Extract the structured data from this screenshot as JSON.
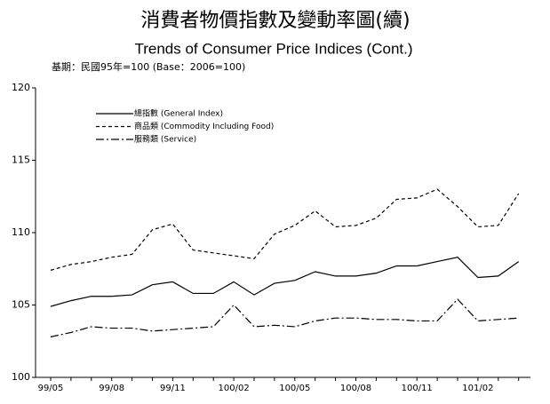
{
  "chart_data": {
    "type": "line",
    "title": "消費者物價指數及變動率圖(續)",
    "subtitle": "Trends of Consumer Price Indices (Cont.)",
    "note": "基期：民國95年=100 (Base：2006=100)",
    "categories": [
      "99/05",
      null,
      null,
      "99/08",
      null,
      null,
      "99/11",
      null,
      null,
      "100/02",
      null,
      null,
      "100/05",
      null,
      null,
      "100/08",
      null,
      null,
      "100/11",
      null,
      null,
      "101/02",
      null,
      null
    ],
    "series": [
      {
        "name": "總指數 (General Index)",
        "color": "#000000",
        "dash": "solid",
        "values": [
          104.9,
          105.3,
          105.6,
          105.6,
          105.7,
          106.4,
          106.6,
          105.8,
          105.8,
          106.6,
          105.7,
          106.5,
          106.7,
          107.3,
          107.0,
          107.0,
          107.2,
          107.7,
          107.7,
          108.0,
          108.3,
          106.9,
          107.0,
          108.0
        ]
      },
      {
        "name": "商品類 (Commodity Including Food)",
        "color": "#000000",
        "dash": "dashed",
        "values": [
          107.4,
          107.8,
          108.0,
          108.3,
          108.5,
          110.2,
          110.6,
          108.8,
          108.6,
          108.4,
          108.2,
          109.9,
          110.5,
          111.5,
          110.4,
          110.5,
          111.0,
          112.3,
          112.4,
          113.0,
          111.8,
          110.4,
          110.5,
          112.7
        ]
      },
      {
        "name": "服務類 (Service)",
        "color": "#000000",
        "dash": "dashdot",
        "values": [
          102.8,
          103.1,
          103.5,
          103.4,
          103.4,
          103.2,
          103.3,
          103.4,
          103.5,
          105.0,
          103.5,
          103.6,
          103.5,
          103.9,
          104.1,
          104.1,
          104.0,
          104.0,
          103.9,
          103.9,
          105.4,
          103.9,
          104.0,
          104.1
        ]
      }
    ],
    "ylim": [
      100,
      120
    ],
    "yticks": [
      100,
      105,
      110,
      115,
      120
    ],
    "grid": false
  }
}
